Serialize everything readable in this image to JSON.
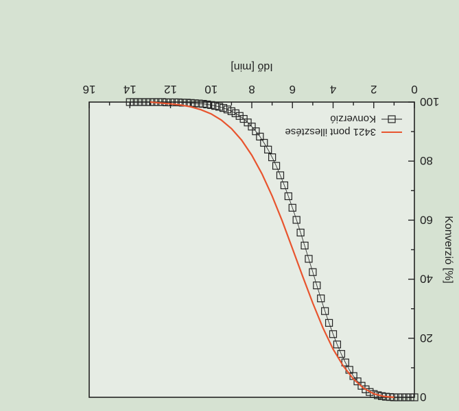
{
  "colors": {
    "background": "#d6e2d2",
    "plot_area": "#e6ece4",
    "fit_line": "#e8542e",
    "markers": "#222222"
  },
  "chart_data": {
    "type": "line",
    "orientation": "rendered rotated 180 degrees (upside down)",
    "xlabel": "Idő [min]",
    "ylabel": "Konverzió [%]",
    "xlim": [
      0,
      16
    ],
    "ylim": [
      0,
      100
    ],
    "x_ticks": [
      "0",
      "2",
      "4",
      "6",
      "8",
      "10",
      "12",
      "14",
      "16"
    ],
    "y_ticks": [
      "0",
      "20",
      "40",
      "60",
      "80",
      "100"
    ],
    "legend_position": "top-right",
    "series": [
      {
        "name": "Konverzió",
        "style": "square markers",
        "x": [
          0.0,
          0.2,
          0.4,
          0.6,
          0.8,
          1.0,
          1.2,
          1.4,
          1.6,
          1.8,
          2.0,
          2.2,
          2.4,
          2.6,
          2.8,
          3.0,
          3.2,
          3.4,
          3.6,
          3.8,
          4.0,
          4.2,
          4.4,
          4.6,
          4.8,
          5.0,
          5.2,
          5.4,
          5.6,
          5.8,
          6.0,
          6.2,
          6.4,
          6.6,
          6.8,
          7.0,
          7.2,
          7.4,
          7.6,
          7.8,
          8.0,
          8.2,
          8.4,
          8.6,
          8.8,
          9.0,
          9.2,
          9.4,
          9.6,
          9.8,
          10.0,
          10.2,
          10.4,
          10.6,
          10.8,
          11.0,
          11.2,
          11.4,
          11.6,
          11.8,
          12.0,
          12.2,
          12.4,
          12.6,
          12.8,
          13.0,
          13.2,
          13.4,
          13.6,
          13.8,
          14.0
        ],
        "y": [
          0.0,
          0.0,
          0.0,
          0.0,
          0.0,
          0.0,
          0.1,
          0.2,
          0.4,
          0.7,
          1.1,
          1.8,
          2.7,
          3.9,
          5.4,
          7.2,
          9.3,
          11.8,
          14.7,
          17.9,
          21.4,
          25.2,
          29.2,
          33.5,
          37.9,
          42.4,
          46.9,
          51.4,
          55.8,
          60.1,
          64.2,
          68.1,
          71.8,
          75.2,
          78.4,
          81.3,
          83.9,
          86.2,
          88.3,
          90.1,
          91.7,
          93.1,
          94.3,
          95.3,
          96.2,
          96.9,
          97.5,
          98.0,
          98.4,
          98.7,
          99.0,
          99.2,
          99.4,
          99.5,
          99.6,
          99.7,
          99.8,
          99.8,
          99.9,
          99.9,
          99.9,
          99.9,
          100.0,
          100.0,
          100.0,
          100.0,
          100.0,
          100.0,
          100.0,
          100.0,
          100.0
        ]
      },
      {
        "name": "3421 pont illesztése",
        "style": "solid line",
        "x": [
          1.0,
          1.5,
          2.0,
          2.5,
          3.0,
          3.5,
          4.0,
          4.5,
          5.0,
          5.5,
          6.0,
          6.5,
          7.0,
          7.5,
          8.0,
          8.5,
          9.0,
          9.5,
          10.0,
          10.5,
          11.0,
          11.5,
          12.0,
          12.5,
          13.0
        ],
        "y": [
          0.0,
          0.3,
          1.2,
          3.1,
          6.2,
          10.6,
          16.3,
          23.5,
          31.9,
          41.0,
          50.4,
          59.7,
          68.2,
          75.7,
          82.0,
          87.1,
          91.0,
          93.9,
          96.0,
          97.4,
          98.4,
          99.0,
          99.4,
          99.7,
          100.0
        ]
      }
    ]
  }
}
